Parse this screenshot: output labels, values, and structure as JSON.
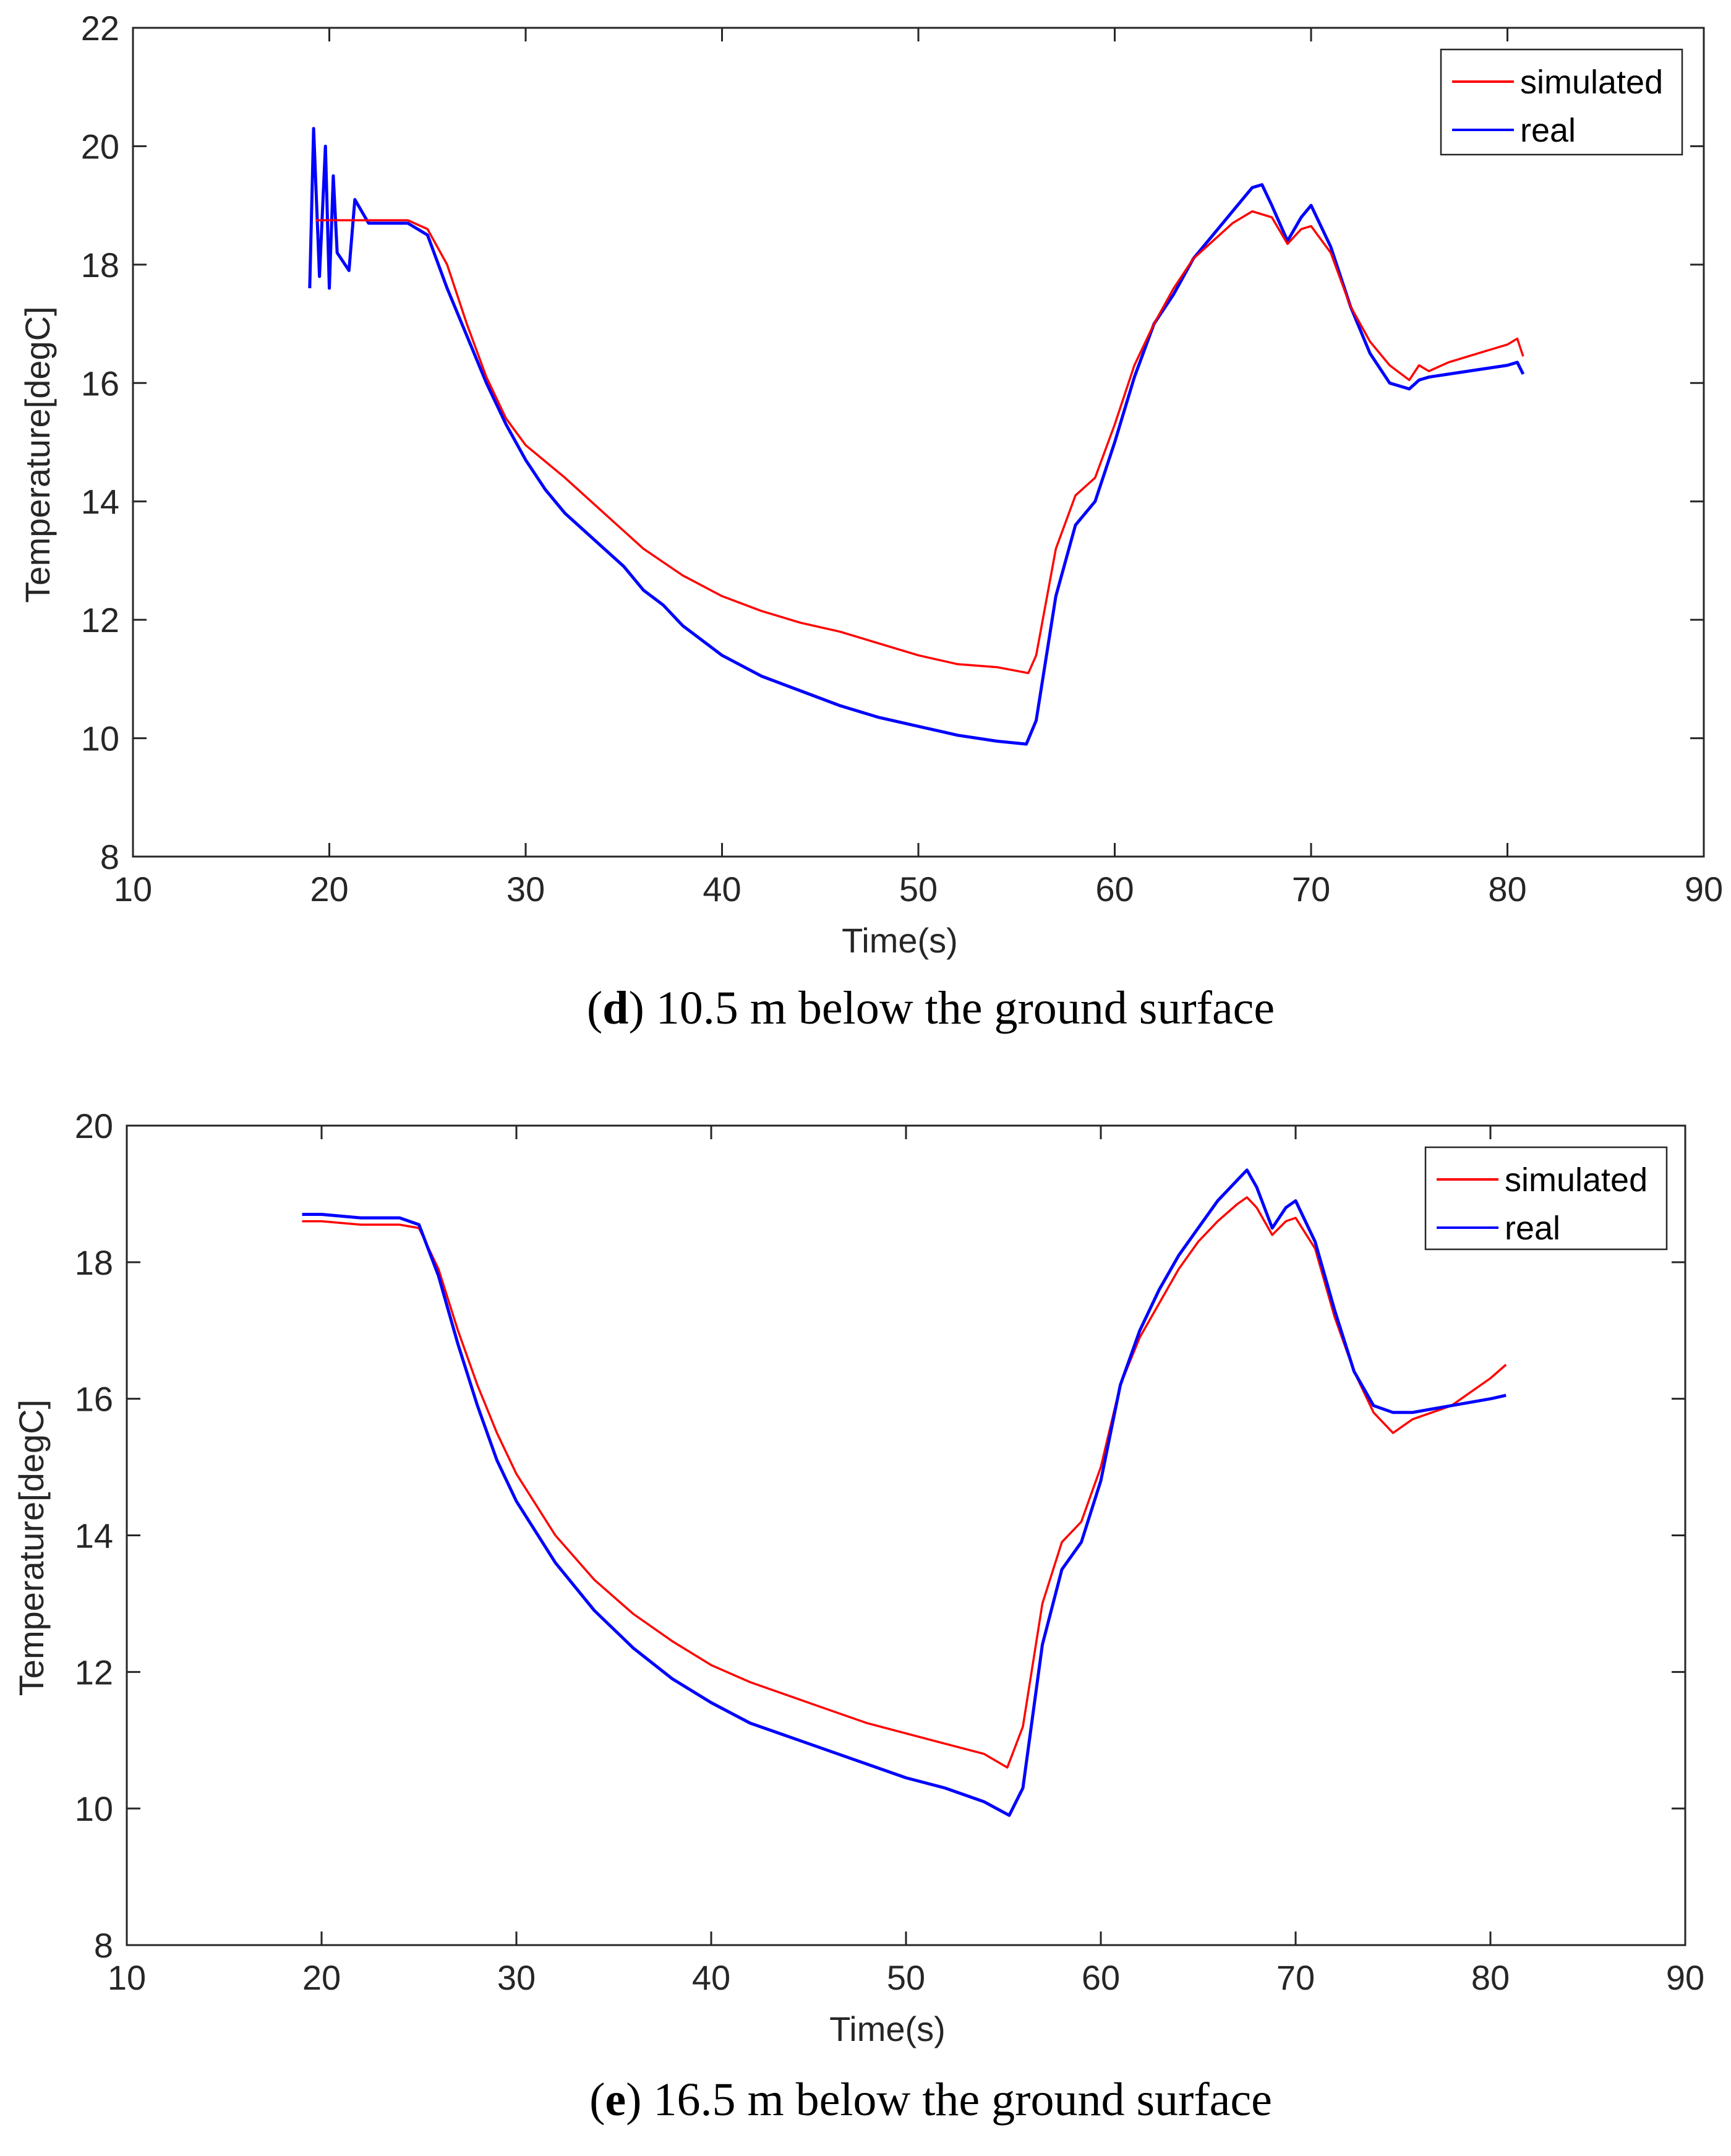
{
  "chart_data": [
    {
      "type": "line",
      "caption_letter": "d",
      "caption_text": "10.5 m below the ground surface",
      "xlabel": "Time(s)",
      "ylabel": "Temperature[degC]",
      "xlim": [
        10,
        90
      ],
      "ylim": [
        8,
        22
      ],
      "xticks": [
        10,
        20,
        30,
        40,
        50,
        60,
        70,
        80,
        90
      ],
      "yticks": [
        8,
        10,
        12,
        14,
        16,
        18,
        20,
        22
      ],
      "legend_position": "top-right",
      "series": [
        {
          "name": "simulated",
          "color": "#ff0000",
          "points": [
            [
              19.3,
              18.75
            ],
            [
              24,
              18.75
            ],
            [
              25,
              18.6
            ],
            [
              26,
              18.0
            ],
            [
              27,
              17.0
            ],
            [
              28,
              16.1
            ],
            [
              29,
              15.4
            ],
            [
              30,
              14.95
            ],
            [
              32,
              14.4
            ],
            [
              34,
              13.8
            ],
            [
              36,
              13.2
            ],
            [
              38,
              12.75
            ],
            [
              40,
              12.4
            ],
            [
              42,
              12.15
            ],
            [
              44,
              11.95
            ],
            [
              46,
              11.8
            ],
            [
              48,
              11.6
            ],
            [
              50,
              11.4
            ],
            [
              52,
              11.25
            ],
            [
              54,
              11.2
            ],
            [
              55.6,
              11.1
            ],
            [
              56,
              11.4
            ],
            [
              57,
              13.2
            ],
            [
              58,
              14.1
            ],
            [
              59,
              14.4
            ],
            [
              60,
              15.3
            ],
            [
              61,
              16.3
            ],
            [
              62,
              17.0
            ],
            [
              63,
              17.6
            ],
            [
              64,
              18.1
            ],
            [
              65,
              18.4
            ],
            [
              66,
              18.7
            ],
            [
              67,
              18.9
            ],
            [
              68,
              18.8
            ],
            [
              68.8,
              18.35
            ],
            [
              69.5,
              18.6
            ],
            [
              70,
              18.65
            ],
            [
              71,
              18.2
            ],
            [
              72,
              17.3
            ],
            [
              73,
              16.7
            ],
            [
              74,
              16.3
            ],
            [
              75,
              16.05
            ],
            [
              75.5,
              16.3
            ],
            [
              76,
              16.2
            ],
            [
              77,
              16.35
            ],
            [
              78,
              16.45
            ],
            [
              79,
              16.55
            ],
            [
              80,
              16.65
            ],
            [
              80.5,
              16.75
            ],
            [
              80.8,
              16.45
            ]
          ]
        },
        {
          "name": "real",
          "color": "#0000ff",
          "points": [
            [
              19.0,
              17.6
            ],
            [
              19.2,
              20.3
            ],
            [
              19.5,
              17.8
            ],
            [
              19.8,
              20.0
            ],
            [
              20.0,
              17.6
            ],
            [
              20.2,
              19.5
            ],
            [
              20.4,
              18.2
            ],
            [
              21.0,
              17.9
            ],
            [
              21.3,
              19.1
            ],
            [
              22,
              18.7
            ],
            [
              23,
              18.7
            ],
            [
              24,
              18.7
            ],
            [
              25,
              18.5
            ],
            [
              26,
              17.6
            ],
            [
              27,
              16.8
            ],
            [
              28,
              16.0
            ],
            [
              29,
              15.3
            ],
            [
              30,
              14.7
            ],
            [
              31,
              14.2
            ],
            [
              32,
              13.8
            ],
            [
              33,
              13.5
            ],
            [
              34,
              13.2
            ],
            [
              35,
              12.9
            ],
            [
              36,
              12.5
            ],
            [
              37,
              12.25
            ],
            [
              38,
              11.9
            ],
            [
              40,
              11.4
            ],
            [
              42,
              11.05
            ],
            [
              44,
              10.8
            ],
            [
              46,
              10.55
            ],
            [
              48,
              10.35
            ],
            [
              50,
              10.2
            ],
            [
              52,
              10.05
            ],
            [
              54,
              9.95
            ],
            [
              55.5,
              9.9
            ],
            [
              56,
              10.3
            ],
            [
              57,
              12.4
            ],
            [
              58,
              13.6
            ],
            [
              59,
              14.0
            ],
            [
              60,
              15.0
            ],
            [
              61,
              16.1
            ],
            [
              62,
              17.0
            ],
            [
              63,
              17.5
            ],
            [
              64,
              18.1
            ],
            [
              65,
              18.5
            ],
            [
              66,
              18.9
            ],
            [
              67,
              19.3
            ],
            [
              67.5,
              19.35
            ],
            [
              68,
              19.0
            ],
            [
              68.8,
              18.4
            ],
            [
              69.5,
              18.8
            ],
            [
              70,
              19.0
            ],
            [
              71,
              18.3
            ],
            [
              72,
              17.3
            ],
            [
              73,
              16.5
            ],
            [
              74,
              16.0
            ],
            [
              75,
              15.9
            ],
            [
              75.5,
              16.05
            ],
            [
              76,
              16.1
            ],
            [
              77,
              16.15
            ],
            [
              78,
              16.2
            ],
            [
              79,
              16.25
            ],
            [
              80,
              16.3
            ],
            [
              80.5,
              16.35
            ],
            [
              80.8,
              16.15
            ]
          ]
        }
      ]
    },
    {
      "type": "line",
      "caption_letter": "e",
      "caption_text": "16.5 m below the ground surface",
      "xlabel": "Time(s)",
      "ylabel": "Temperature[degC]",
      "xlim": [
        10,
        90
      ],
      "ylim": [
        8,
        20
      ],
      "xticks": [
        10,
        20,
        30,
        40,
        50,
        60,
        70,
        80,
        90
      ],
      "yticks": [
        8,
        10,
        12,
        14,
        16,
        18,
        20
      ],
      "legend_position": "top-right",
      "series": [
        {
          "name": "simulated",
          "color": "#ff0000",
          "points": [
            [
              19,
              18.6
            ],
            [
              20,
              18.6
            ],
            [
              22,
              18.55
            ],
            [
              24,
              18.55
            ],
            [
              25,
              18.5
            ],
            [
              26,
              17.9
            ],
            [
              27,
              17.0
            ],
            [
              28,
              16.2
            ],
            [
              29,
              15.5
            ],
            [
              30,
              14.9
            ],
            [
              32,
              14.0
            ],
            [
              34,
              13.35
            ],
            [
              36,
              12.85
            ],
            [
              38,
              12.45
            ],
            [
              40,
              12.1
            ],
            [
              42,
              11.85
            ],
            [
              44,
              11.65
            ],
            [
              46,
              11.45
            ],
            [
              48,
              11.25
            ],
            [
              50,
              11.1
            ],
            [
              52,
              10.95
            ],
            [
              54,
              10.8
            ],
            [
              55.2,
              10.6
            ],
            [
              56,
              11.2
            ],
            [
              57,
              13.0
            ],
            [
              58,
              13.9
            ],
            [
              59,
              14.2
            ],
            [
              60,
              15.0
            ],
            [
              61,
              16.2
            ],
            [
              62,
              16.9
            ],
            [
              63,
              17.4
            ],
            [
              64,
              17.9
            ],
            [
              65,
              18.3
            ],
            [
              66,
              18.6
            ],
            [
              67,
              18.85
            ],
            [
              67.5,
              18.95
            ],
            [
              68,
              18.8
            ],
            [
              68.8,
              18.4
            ],
            [
              69.5,
              18.6
            ],
            [
              70,
              18.65
            ],
            [
              71,
              18.2
            ],
            [
              72,
              17.2
            ],
            [
              73,
              16.4
            ],
            [
              74,
              15.8
            ],
            [
              75,
              15.5
            ],
            [
              76,
              15.7
            ],
            [
              77,
              15.8
            ],
            [
              78,
              15.9
            ],
            [
              79,
              16.1
            ],
            [
              80,
              16.3
            ],
            [
              80.8,
              16.5
            ]
          ]
        },
        {
          "name": "real",
          "color": "#0000ff",
          "points": [
            [
              19,
              18.7
            ],
            [
              20,
              18.7
            ],
            [
              22,
              18.65
            ],
            [
              24,
              18.65
            ],
            [
              25,
              18.55
            ],
            [
              26,
              17.8
            ],
            [
              27,
              16.8
            ],
            [
              28,
              15.9
            ],
            [
              29,
              15.1
            ],
            [
              30,
              14.5
            ],
            [
              32,
              13.6
            ],
            [
              34,
              12.9
            ],
            [
              36,
              12.35
            ],
            [
              38,
              11.9
            ],
            [
              40,
              11.55
            ],
            [
              42,
              11.25
            ],
            [
              44,
              11.05
            ],
            [
              46,
              10.85
            ],
            [
              48,
              10.65
            ],
            [
              50,
              10.45
            ],
            [
              52,
              10.3
            ],
            [
              54,
              10.1
            ],
            [
              55.3,
              9.9
            ],
            [
              56,
              10.3
            ],
            [
              57,
              12.4
            ],
            [
              58,
              13.5
            ],
            [
              59,
              13.9
            ],
            [
              60,
              14.8
            ],
            [
              61,
              16.2
            ],
            [
              62,
              17.0
            ],
            [
              63,
              17.6
            ],
            [
              64,
              18.1
            ],
            [
              65,
              18.5
            ],
            [
              66,
              18.9
            ],
            [
              67,
              19.2
            ],
            [
              67.5,
              19.35
            ],
            [
              68,
              19.1
            ],
            [
              68.8,
              18.5
            ],
            [
              69.5,
              18.8
            ],
            [
              70,
              18.9
            ],
            [
              71,
              18.3
            ],
            [
              72,
              17.3
            ],
            [
              73,
              16.4
            ],
            [
              74,
              15.9
            ],
            [
              75,
              15.8
            ],
            [
              76,
              15.8
            ],
            [
              77,
              15.85
            ],
            [
              78,
              15.9
            ],
            [
              79,
              15.95
            ],
            [
              80,
              16.0
            ],
            [
              80.8,
              16.05
            ]
          ]
        }
      ]
    }
  ]
}
